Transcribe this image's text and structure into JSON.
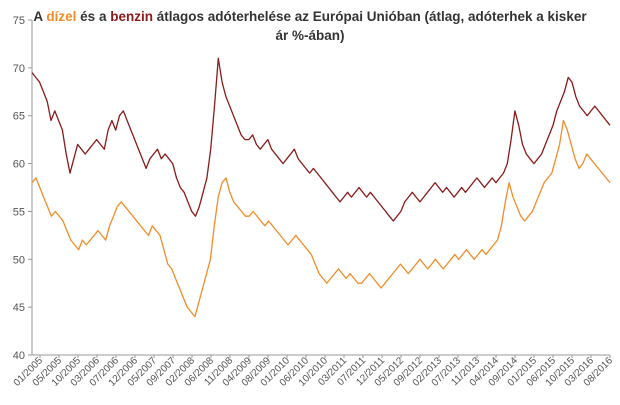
{
  "chart_data": {
    "type": "line",
    "title_parts": [
      {
        "text": "A ",
        "color": "#333333",
        "key": "t0"
      },
      {
        "text": "dízel",
        "color": "#f28c28",
        "key": "t1"
      },
      {
        "text": " és a ",
        "color": "#333333",
        "key": "t2"
      },
      {
        "text": "benzin",
        "color": "#8b1a1a",
        "key": "t3"
      },
      {
        "text": " átlagos adóterhelése az Európai Unióban (átlag, adóterhek a kisker ár %-ában)",
        "color": "#333333",
        "key": "t4"
      }
    ],
    "x_ticks": [
      "01/2005",
      "05/2005",
      "10/2005",
      "03/2006",
      "07/2006",
      "12/2006",
      "05/2007",
      "09/2007",
      "02/2008",
      "06/2008",
      "11/2008",
      "04/2009",
      "08/2009",
      "01/2010",
      "06/2010",
      "10/2010",
      "03/2011",
      "07/2011",
      "12/2011",
      "05/2012",
      "09/2012",
      "02/2013",
      "07/2013",
      "11/2013",
      "04/2014",
      "09/2014",
      "01/2015",
      "06/2015",
      "10/2015",
      "03/2016",
      "08/2016"
    ],
    "y_ticks": [
      40,
      45,
      50,
      55,
      60,
      65,
      70,
      75
    ],
    "ylim": [
      40,
      75
    ],
    "grid": false,
    "legend": "none",
    "series": [
      {
        "key": "benzin",
        "color": "#8b1a1a",
        "values": [
          69.5,
          69,
          68.5,
          67.5,
          66.5,
          64.5,
          65.5,
          64.5,
          63.5,
          61,
          59,
          60.5,
          62,
          61.5,
          61,
          61.5,
          62,
          62.5,
          62,
          61.5,
          63.5,
          64.5,
          63.5,
          65,
          65.5,
          64.5,
          63.5,
          62.5,
          61.5,
          60.5,
          59.5,
          60.5,
          61,
          61.5,
          60.5,
          61,
          60.5,
          60,
          58.5,
          57.5,
          57,
          56,
          55,
          54.5,
          55.5,
          57,
          58.5,
          61.5,
          66,
          71,
          68.5,
          67,
          66,
          65,
          64,
          63,
          62.5,
          62.5,
          63,
          62,
          61.5,
          62,
          62.5,
          61.5,
          61,
          60.5,
          60,
          60.5,
          61,
          61.5,
          60.5,
          60,
          59.5,
          59,
          59.5,
          59,
          58.5,
          58,
          57.5,
          57,
          56.5,
          56,
          56.5,
          57,
          56.5,
          57,
          57.5,
          57,
          56.5,
          57,
          56.5,
          56,
          55.5,
          55,
          54.5,
          54,
          54.5,
          55,
          56,
          56.5,
          57,
          56.5,
          56,
          56.5,
          57,
          57.5,
          58,
          57.5,
          57,
          57.5,
          57,
          56.5,
          57,
          57.5,
          57,
          57.5,
          58,
          58.5,
          58,
          57.5,
          58,
          58.5,
          58,
          58.5,
          59,
          60,
          62.5,
          65.5,
          64,
          62,
          61,
          60.5,
          60,
          60.5,
          61,
          62,
          63,
          64,
          65.5,
          66.5,
          67.5,
          69,
          68.5,
          67,
          66,
          65.5,
          65,
          65.5,
          66,
          65.5,
          65,
          64.5,
          64
        ]
      },
      {
        "key": "dizel",
        "color": "#f28c28",
        "values": [
          58,
          58.5,
          57.5,
          56.5,
          55.5,
          54.5,
          55,
          54.5,
          54,
          53,
          52,
          51.5,
          51,
          52,
          51.5,
          52,
          52.5,
          53,
          52.5,
          52,
          53.5,
          54.5,
          55.5,
          56,
          55.5,
          55,
          54.5,
          54,
          53.5,
          53,
          52.5,
          53.5,
          53,
          52.5,
          51,
          49.5,
          49,
          48,
          47,
          46,
          45,
          44.5,
          44,
          45.5,
          47,
          48.5,
          50,
          53.5,
          56.5,
          58,
          58.5,
          57,
          56,
          55.5,
          55,
          54.5,
          54.5,
          55,
          54.5,
          54,
          53.5,
          54,
          53.5,
          53,
          52.5,
          52,
          51.5,
          52,
          52.5,
          52,
          51.5,
          51,
          50.5,
          49.5,
          48.5,
          48,
          47.5,
          48,
          48.5,
          49,
          48.5,
          48,
          48.5,
          48,
          47.5,
          47.5,
          48,
          48.5,
          48,
          47.5,
          47,
          47.5,
          48,
          48.5,
          49,
          49.5,
          49,
          48.5,
          49,
          49.5,
          50,
          49.5,
          49,
          49.5,
          50,
          49.5,
          49,
          49.5,
          50,
          50.5,
          50,
          50.5,
          51,
          50.5,
          50,
          50.5,
          51,
          50.5,
          51,
          51.5,
          52,
          53.5,
          56,
          58,
          56.5,
          55.5,
          54.5,
          54,
          54.5,
          55,
          56,
          57,
          58,
          58.5,
          59,
          60.5,
          62,
          64.5,
          63.5,
          62,
          60.5,
          59.5,
          60,
          61,
          60.5,
          60,
          59.5,
          59,
          58.5,
          58
        ]
      }
    ]
  }
}
